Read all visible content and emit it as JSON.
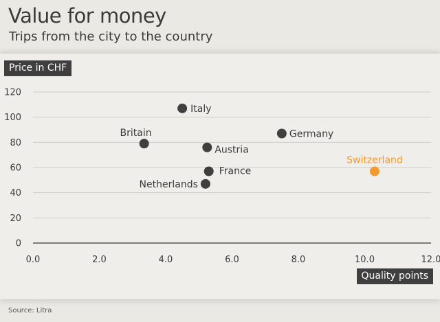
{
  "header": {
    "title": "Value for money",
    "subtitle": "Trips from the city to the country"
  },
  "footer": {
    "source": "Source: Litra"
  },
  "colors": {
    "dot": "#3f3f3f",
    "highlight": "#f39a2e",
    "grid": "#cfcdc8",
    "axis": "#3a3a3a"
  },
  "chart_data": {
    "type": "scatter",
    "title": "Value for money",
    "subtitle": "Trips from the city to the country",
    "ylabel": "Price in CHF",
    "xlabel": "Quality points",
    "xlim": [
      0,
      12
    ],
    "ylim": [
      0,
      120
    ],
    "x_ticks": [
      "0.0",
      "2.0",
      "4.0",
      "6.0",
      "8.0",
      "10.0",
      "12.0"
    ],
    "y_ticks": [
      "0",
      "20",
      "40",
      "60",
      "80",
      "100",
      "120"
    ],
    "grid": true,
    "points": [
      {
        "label": "Italy",
        "x": 4.5,
        "y": 107,
        "highlight": false
      },
      {
        "label": "Britain",
        "x": 3.35,
        "y": 79,
        "highlight": false
      },
      {
        "label": "Germany",
        "x": 7.5,
        "y": 87,
        "highlight": false
      },
      {
        "label": "Austria",
        "x": 5.25,
        "y": 76,
        "highlight": false
      },
      {
        "label": "France",
        "x": 5.3,
        "y": 57,
        "highlight": false
      },
      {
        "label": "Netherlands",
        "x": 5.2,
        "y": 47,
        "highlight": false
      },
      {
        "label": "Switzerland",
        "x": 10.3,
        "y": 57,
        "highlight": true
      }
    ]
  }
}
